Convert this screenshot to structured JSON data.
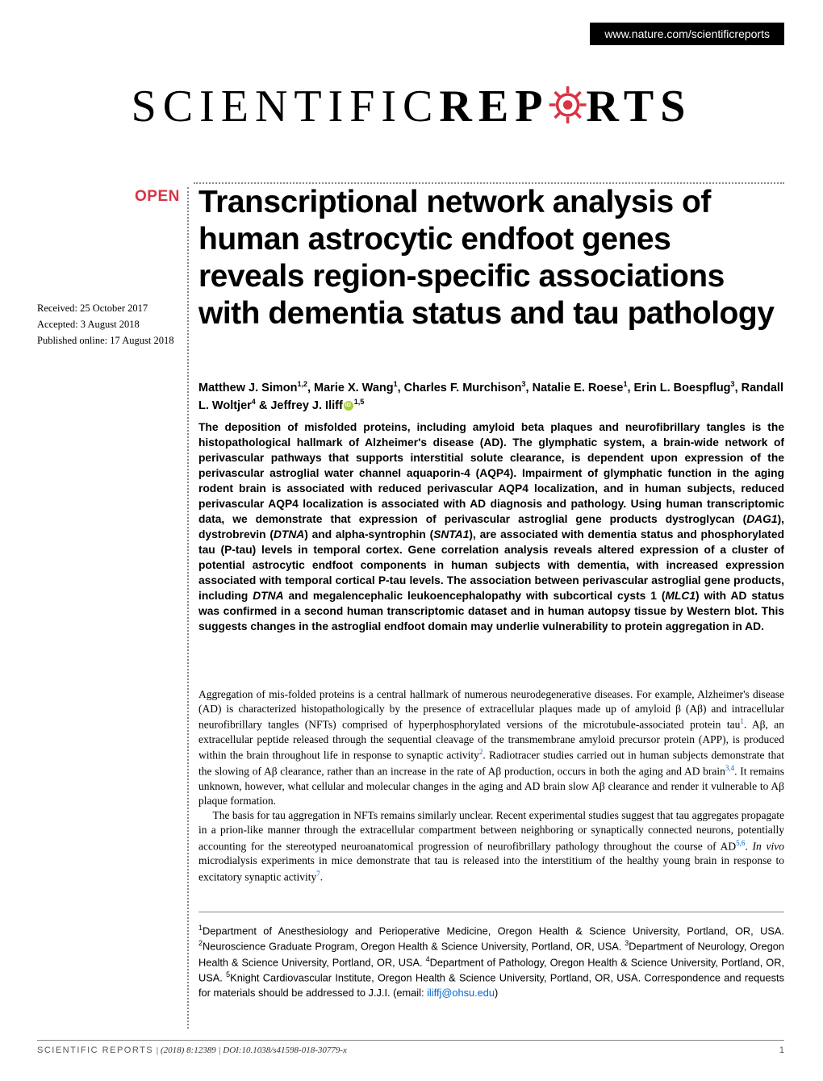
{
  "header": {
    "url": "www.nature.com/scientificreports"
  },
  "journal": {
    "name_part1": "SCIENTIFIC ",
    "name_part2": "REP",
    "name_part3": "RTS",
    "gear_color": "#d93344"
  },
  "badge": {
    "open": "OPEN"
  },
  "title": "Transcriptional network analysis of human astrocytic endfoot genes reveals region-specific associations with dementia status and tau pathology",
  "dates": {
    "received": "Received: 25 October 2017",
    "accepted": "Accepted: 3 August 2018",
    "published": "Published online: 17 August 2018"
  },
  "authors_html": "Matthew J. Simon<sup>1,2</sup>, Marie X. Wang<sup>1</sup>, Charles F. Murchison<sup>3</sup>, Natalie E. Roese<sup>1</sup>, Erin L. Boespflug<sup>3</sup>, Randall L. Woltjer<sup>4</sup> & Jeffrey J. Iliff<span class=\"orcid\"></span><sup>1,5</sup>",
  "abstract_html": "The deposition of misfolded proteins, including amyloid beta plaques and neurofibrillary tangles is the histopathological hallmark of Alzheimer's disease (AD). The glymphatic system, a brain-wide network of perivascular pathways that supports interstitial solute clearance, is dependent upon expression of the perivascular astroglial water channel aquaporin-4 (AQP4). Impairment of glymphatic function in the aging rodent brain is associated with reduced perivascular AQP4 localization, and in human subjects, reduced perivascular AQP4 localization is associated with AD diagnosis and pathology. Using human transcriptomic data, we demonstrate that expression of perivascular astroglial gene products dystroglycan (<em>DAG1</em>), dystrobrevin (<em>DTNA</em>) and alpha-syntrophin (<em>SNTA1</em>), are associated with dementia status and phosphorylated tau (P-tau) levels in temporal cortex. Gene correlation analysis reveals altered expression of a cluster of potential astrocytic endfoot components in human subjects with dementia, with increased expression associated with temporal cortical P-tau levels. The association between perivascular astroglial gene products, including <em>DTNA</em> and megalencephalic leukoencephalopathy with subcortical cysts 1 (<em>MLC1</em>) with AD status was confirmed in a second human transcriptomic dataset and in human autopsy tissue by Western blot. This suggests changes in the astroglial endfoot domain may underlie vulnerability to protein aggregation in AD.",
  "body": {
    "p1_html": "Aggregation of mis-folded proteins is a central hallmark of numerous neurodegenerative diseases. For example, Alzheimer's disease (AD) is characterized histopathologically by the presence of extracellular plaques made up of amyloid β (Aβ) and intracellular neurofibrillary tangles (NFTs) comprised of hyperphosphorylated versions of the microtubule-associated protein tau<sup>1</sup>. Aβ, an extracellular peptide released through the sequential cleavage of the transmembrane amyloid precursor protein (APP), is produced within the brain throughout life in response to synaptic activity<sup>2</sup>. Radiotracer studies carried out in human subjects demonstrate that the slowing of Aβ clearance, rather than an increase in the rate of Aβ production, occurs in both the aging and AD brain<sup>3,4</sup>. It remains unknown, however, what cellular and molecular changes in the aging and AD brain slow Aβ clearance and render it vulnerable to Aβ plaque formation.",
    "p2_html": "The basis for tau aggregation in NFTs remains similarly unclear. Recent experimental studies suggest that tau aggregates propagate in a prion-like manner through the extracellular compartment between neighboring or synaptically connected neurons, potentially accounting for the stereotyped neuroanatomical progression of neurofibrillary pathology throughout the course of AD<sup>5,6</sup>. <em>In vivo</em> microdialysis experiments in mice demonstrate that tau is released into the interstitium of the healthy young brain in response to excitatory synaptic activity<sup>7</sup>."
  },
  "affiliations_html": "<sup>1</sup>Department of Anesthesiology and Perioperative Medicine, Oregon Health & Science University, Portland, OR, USA. <sup>2</sup>Neuroscience Graduate Program, Oregon Health & Science University, Portland, OR, USA. <sup>3</sup>Department of Neurology, Oregon Health & Science University, Portland, OR, USA. <sup>4</sup>Department of Pathology, Oregon Health & Science University, Portland, OR, USA. <sup>5</sup>Knight Cardiovascular Institute, Oregon Health & Science University, Portland, OR, USA. Correspondence and requests for materials should be addressed to J.J.I. (email: <span class=\"email\">iliffj@ohsu.edu</span>)",
  "footer": {
    "journal_label": "SCIENTIFIC REPORTS",
    "citation": " |  (2018) 8:12389  | DOI:10.1038/s41598-018-30779-x",
    "page": "1"
  },
  "colors": {
    "accent": "#d93344",
    "link": "#0066cc",
    "orcid": "#a6ce39",
    "rule": "#888888"
  }
}
